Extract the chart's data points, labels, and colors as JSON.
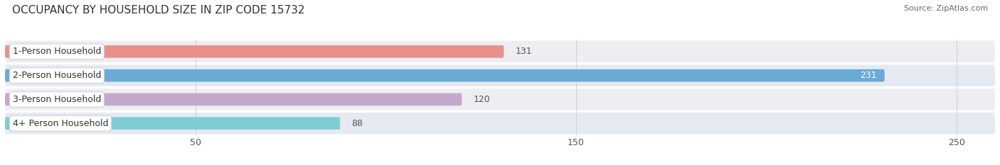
{
  "title": "OCCUPANCY BY HOUSEHOLD SIZE IN ZIP CODE 15732",
  "source": "Source: ZipAtlas.com",
  "categories": [
    "1-Person Household",
    "2-Person Household",
    "3-Person Household",
    "4+ Person Household"
  ],
  "values": [
    131,
    231,
    120,
    88
  ],
  "bar_colors": [
    "#e8908a",
    "#6aaad6",
    "#c4a8cc",
    "#7dcdd4"
  ],
  "label_colors": [
    "#444444",
    "#ffffff",
    "#444444",
    "#444444"
  ],
  "row_bg_colors": [
    "#ededf2",
    "#e5eaf2",
    "#ededf2",
    "#e5eaf2"
  ],
  "xlim": [
    0,
    260
  ],
  "xticks": [
    50,
    150,
    250
  ],
  "bar_height": 0.52,
  "figsize": [
    14.06,
    2.33
  ],
  "dpi": 100,
  "title_fontsize": 11,
  "source_fontsize": 8,
  "label_fontsize": 9,
  "value_fontsize": 9,
  "tick_fontsize": 9
}
